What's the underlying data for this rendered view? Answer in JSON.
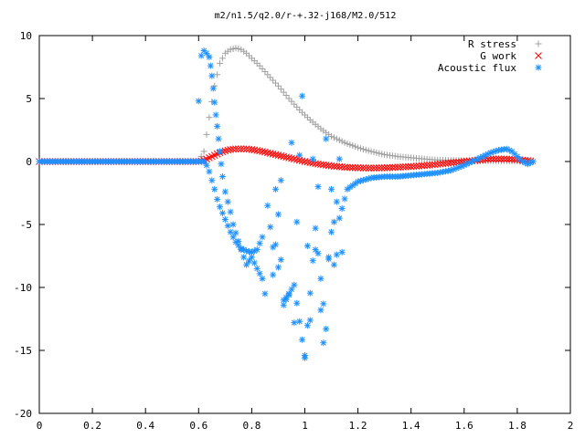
{
  "chart_data": {
    "type": "scatter",
    "title": "m2/n1.5/q2.0/r-+.32-j168/M2.0/512",
    "xlabel": "",
    "ylabel": "",
    "xlim": [
      0,
      2
    ],
    "ylim": [
      -20,
      10
    ],
    "x_ticks": [
      "0",
      "0.2",
      "0.4",
      "0.6",
      "0.8",
      "1",
      "1.2",
      "1.4",
      "1.6",
      "1.8",
      "2"
    ],
    "y_ticks": [
      "10",
      "5",
      "0",
      "-5",
      "-10",
      "-15",
      "-20"
    ],
    "legend_position": "top-right",
    "grid": false,
    "series": [
      {
        "name": "R stress",
        "color": "#a0a0a0",
        "marker": "plus",
        "x": [
          0.0,
          0.1,
          0.2,
          0.3,
          0.4,
          0.5,
          0.6,
          0.62,
          0.64,
          0.66,
          0.68,
          0.7,
          0.72,
          0.74,
          0.76,
          0.78,
          0.8,
          0.83,
          0.86,
          0.9,
          0.94,
          0.98,
          1.02,
          1.06,
          1.1,
          1.15,
          1.2,
          1.25,
          1.3,
          1.35,
          1.4,
          1.45,
          1.5,
          1.55,
          1.6,
          1.65,
          1.7,
          1.75,
          1.8,
          1.85
        ],
        "y": [
          0,
          0,
          0,
          0,
          0,
          0,
          0,
          0.8,
          3.5,
          6.0,
          7.8,
          8.6,
          8.9,
          9.0,
          8.9,
          8.6,
          8.2,
          7.6,
          6.9,
          6.0,
          5.0,
          4.1,
          3.3,
          2.6,
          2.0,
          1.5,
          1.1,
          0.8,
          0.55,
          0.4,
          0.3,
          0.2,
          0.12,
          0.1,
          0.08,
          0.05,
          0.05,
          0.05,
          0.02,
          0.0
        ]
      },
      {
        "name": "G work",
        "color": "#ff0000",
        "marker": "cross",
        "x": [
          0.0,
          0.1,
          0.2,
          0.3,
          0.4,
          0.5,
          0.6,
          0.62,
          0.64,
          0.66,
          0.68,
          0.7,
          0.72,
          0.74,
          0.76,
          0.78,
          0.8,
          0.84,
          0.88,
          0.92,
          0.96,
          1.0,
          1.05,
          1.1,
          1.15,
          1.2,
          1.25,
          1.3,
          1.35,
          1.4,
          1.45,
          1.5,
          1.55,
          1.6,
          1.65,
          1.7,
          1.75,
          1.8,
          1.85
        ],
        "y": [
          0,
          0,
          0,
          0,
          0,
          0,
          0,
          0.1,
          0.3,
          0.5,
          0.7,
          0.85,
          0.95,
          1.0,
          1.0,
          1.0,
          0.95,
          0.8,
          0.6,
          0.4,
          0.2,
          0.0,
          -0.2,
          -0.35,
          -0.45,
          -0.5,
          -0.52,
          -0.5,
          -0.45,
          -0.4,
          -0.32,
          -0.22,
          -0.1,
          0.0,
          0.1,
          0.2,
          0.2,
          0.15,
          0.05
        ]
      },
      {
        "name": "Acoustic flux",
        "color": "#1e90ff",
        "marker": "star",
        "x": [
          0.0,
          0.1,
          0.2,
          0.3,
          0.4,
          0.5,
          0.6,
          0.62,
          0.63,
          0.64,
          0.65,
          0.66,
          0.67,
          0.68,
          0.7,
          0.72,
          0.74,
          0.76,
          0.78,
          0.8,
          0.82,
          0.84,
          0.6,
          0.61,
          0.62,
          0.63,
          0.64,
          0.645,
          0.65,
          0.655,
          0.66,
          0.665,
          0.67,
          0.675,
          0.68,
          0.685,
          0.69,
          0.7,
          0.71,
          0.72,
          0.73,
          0.76,
          0.78,
          0.8,
          0.82,
          0.84,
          0.85,
          0.86,
          0.87,
          0.88,
          0.89,
          0.9,
          0.91,
          0.92,
          0.93,
          0.94,
          0.95,
          0.96,
          0.97,
          0.98,
          0.99,
          1.0,
          1.01,
          1.02,
          1.03,
          1.04,
          1.05,
          1.06,
          1.07,
          1.08,
          1.09,
          1.1,
          1.11,
          1.12,
          1.13,
          1.14,
          0.88,
          0.9,
          0.92,
          0.94,
          0.96,
          1.0,
          1.04,
          1.08,
          1.1,
          1.12,
          1.13,
          1.16,
          1.2,
          1.25,
          1.3,
          1.35,
          1.4,
          1.45,
          1.5,
          1.55,
          1.6,
          1.65,
          1.7,
          1.73,
          1.76,
          1.78,
          1.8,
          1.82,
          1.84,
          1.86
        ],
        "y": [
          0,
          0,
          0,
          0,
          0,
          0,
          0,
          0.0,
          -0.3,
          -0.8,
          -1.5,
          -2.2,
          -3.0,
          -3.6,
          -4.6,
          -5.6,
          -6.4,
          -6.9,
          -7.1,
          -7.2,
          -7.0,
          -6.0,
          4.8,
          8.4,
          8.8,
          8.6,
          8.3,
          7.6,
          6.8,
          5.8,
          4.7,
          3.7,
          2.8,
          1.8,
          0.8,
          -0.2,
          -1.2,
          -2.4,
          -3.2,
          -4.0,
          -5.0,
          -7.0,
          -8.2,
          -7.6,
          -8.5,
          -9.3,
          -10.5,
          -3.5,
          -5.2,
          -6.8,
          -2.2,
          -8.4,
          -1.5,
          -11.0,
          -10.8,
          -10.6,
          1.5,
          -12.8,
          -4.8,
          0.5,
          5.2,
          -15.4,
          -6.7,
          -12.6,
          0.2,
          -7.0,
          -2.0,
          -11.8,
          -14.4,
          1.8,
          -7.6,
          -5.6,
          -8.2,
          -3.2,
          0.2,
          -7.2,
          -9.0,
          -4.2,
          -11.4,
          -10.5,
          -9.8,
          -15.6,
          -5.3,
          -13.3,
          -2.2,
          -7.4,
          -4.5,
          -2.2,
          -1.6,
          -1.3,
          -1.2,
          -1.2,
          -1.1,
          -1.0,
          -0.9,
          -0.7,
          -0.3,
          0.2,
          0.7,
          0.9,
          1.0,
          0.8,
          0.4,
          0.0,
          -0.2,
          0.0
        ]
      }
    ]
  }
}
